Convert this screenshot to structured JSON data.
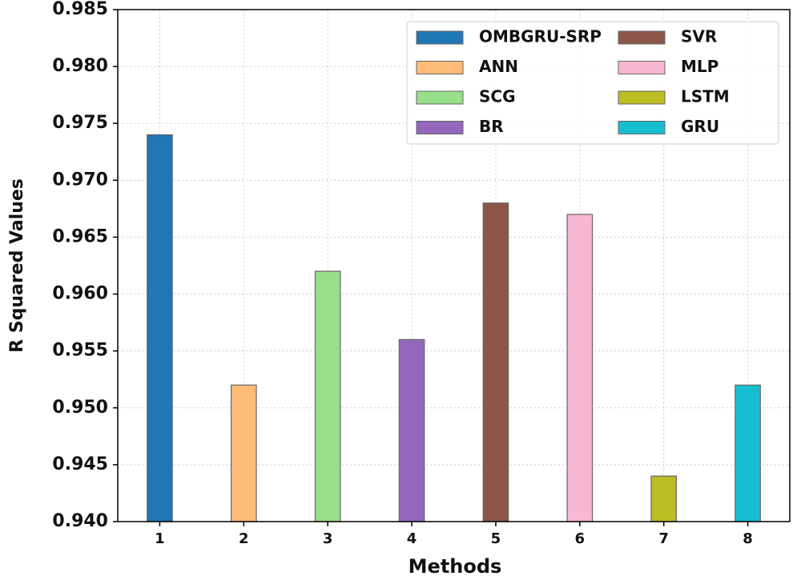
{
  "chart_data": {
    "type": "bar",
    "x": [
      1,
      2,
      3,
      4,
      5,
      6,
      7,
      8
    ],
    "xlim": [
      0.5,
      8.5
    ],
    "xticks": [
      1,
      2,
      3,
      4,
      5,
      6,
      7,
      8
    ],
    "xlabel": "Methods",
    "ylabel": "R Squared Values",
    "ylim": [
      0.94,
      0.985
    ],
    "yticks": [
      {
        "value": 0.94,
        "label": "0.940"
      },
      0.945,
      {
        "value": 0.95,
        "label": "0.950"
      },
      0.955,
      {
        "value": 0.96,
        "label": "0.960"
      },
      0.965,
      {
        "value": 0.97,
        "label": "0.970"
      },
      0.975,
      {
        "value": 0.98,
        "label": "0.980"
      },
      0.985
    ],
    "grid": true,
    "legend": "upper right",
    "series": [
      {
        "name": "OMBGRU-SRP",
        "color": "#1f77b4",
        "values": [
          0.974,
          null,
          null,
          null,
          null,
          null,
          null,
          null
        ]
      },
      {
        "name": "ANN",
        "color": "#ffbb78",
        "values": [
          null,
          0.952,
          null,
          null,
          null,
          null,
          null,
          null
        ]
      },
      {
        "name": "SCG",
        "color": "#98df8a",
        "values": [
          null,
          null,
          0.962,
          null,
          null,
          null,
          null,
          null
        ]
      },
      {
        "name": "BR",
        "color": "#9467bd",
        "values": [
          null,
          null,
          null,
          0.956,
          null,
          null,
          null,
          null
        ]
      },
      {
        "name": "SVR",
        "color": "#8c564b",
        "values": [
          null,
          null,
          null,
          null,
          0.968,
          null,
          null,
          null
        ]
      },
      {
        "name": "MLP",
        "color": "#f7b6d2",
        "values": [
          null,
          null,
          null,
          null,
          null,
          0.967,
          null,
          null
        ]
      },
      {
        "name": "LSTM",
        "color": "#bcbd22",
        "values": [
          null,
          null,
          null,
          null,
          null,
          null,
          0.944,
          null
        ]
      },
      {
        "name": "GRU",
        "color": "#17becf",
        "values": [
          null,
          null,
          null,
          null,
          null,
          null,
          null,
          0.952
        ]
      }
    ]
  }
}
